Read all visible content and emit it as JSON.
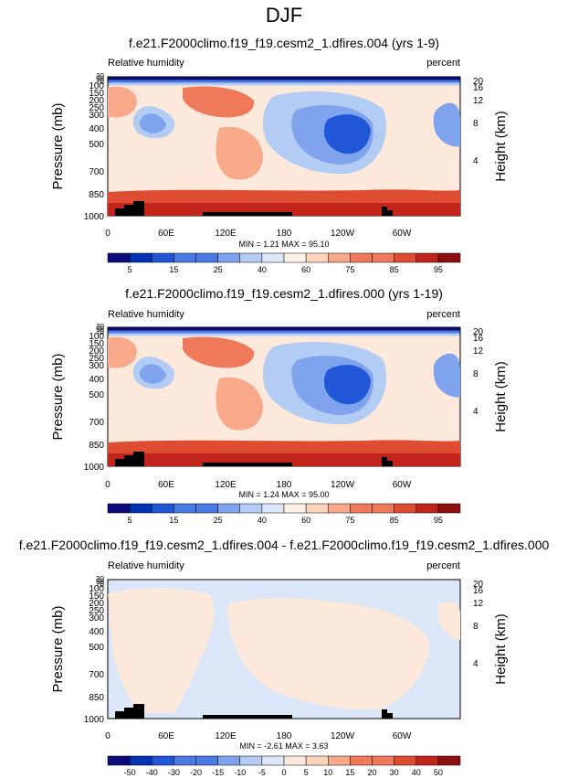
{
  "page": {
    "title": "DJF"
  },
  "colors": {
    "abs_fill": [
      "#0b0b7a",
      "#0033b3",
      "#1f57d6",
      "#4a7ae3",
      "#7fa3ec",
      "#b3ccf3",
      "#dbe6f8",
      "#fff2e8",
      "#fcd4bc",
      "#f7a98a",
      "#ee7a5b",
      "#de4d31",
      "#c1241a",
      "#8e0f10"
    ],
    "diff_fill": [
      "#0b0b7a",
      "#0033b3",
      "#1f57d6",
      "#4a7ae3",
      "#7fa3ec",
      "#b3ccf3",
      "#dbe6f8",
      "#fde9db",
      "#fcd4bc",
      "#f7a98a",
      "#ee7a5b",
      "#de4d31",
      "#c1241a",
      "#8e0f10"
    ],
    "topography": "#000000"
  },
  "chart_data": [
    {
      "type": "heatmap",
      "title": "f.e21.F2000climo.f19_f19.cesm2_1.dfires.004 (yrs 1-9)",
      "variable_label": "Relative humidity",
      "units_label": "percent",
      "ylabel": "Pressure (mb)",
      "ylabel_right": "Height (km)",
      "x_ticks": [
        "0",
        "60E",
        "120E",
        "180",
        "120W",
        "60W"
      ],
      "y_ticks": [
        "1000",
        "850",
        "700",
        "500",
        "400",
        "300",
        "250",
        "200",
        "150",
        "100",
        "70",
        "50",
        "30"
      ],
      "y_ticks_right": [
        "4",
        "8",
        "12",
        "16",
        "20"
      ],
      "min_max_label": "MIN =   1.21  MAX =  95.10",
      "colorbar_levels": [
        "",
        "5",
        "",
        "15",
        "",
        "25",
        "",
        "40",
        "",
        "60",
        "",
        "75",
        "",
        "85",
        "",
        "95"
      ],
      "colorbar_ticks": [
        "5",
        "15",
        "25",
        "40",
        "60",
        "75",
        "85",
        "95"
      ],
      "levels": [
        5,
        10,
        15,
        20,
        25,
        30,
        40,
        50,
        60,
        70,
        75,
        80,
        85,
        90,
        95
      ],
      "grid": false
    },
    {
      "type": "heatmap",
      "title": "f.e21.F2000climo.f19_f19.cesm2_1.dfires.000 (yrs 1-19)",
      "variable_label": "Relative humidity",
      "units_label": "percent",
      "ylabel": "Pressure (mb)",
      "ylabel_right": "Height (km)",
      "x_ticks": [
        "0",
        "60E",
        "120E",
        "180",
        "120W",
        "60W"
      ],
      "y_ticks": [
        "1000",
        "850",
        "700",
        "500",
        "400",
        "300",
        "250",
        "200",
        "150",
        "100",
        "70",
        "50",
        "30"
      ],
      "y_ticks_right": [
        "4",
        "8",
        "12",
        "16",
        "20"
      ],
      "min_max_label": "MIN =   1.24  MAX =  95.00",
      "colorbar_ticks": [
        "5",
        "15",
        "25",
        "40",
        "60",
        "75",
        "85",
        "95"
      ],
      "levels": [
        5,
        10,
        15,
        20,
        25,
        30,
        40,
        50,
        60,
        70,
        75,
        80,
        85,
        90,
        95
      ],
      "grid": false
    },
    {
      "type": "heatmap",
      "title": "f.e21.F2000climo.f19_f19.cesm2_1.dfires.004 - f.e21.F2000climo.f19_f19.cesm2_1.dfires.000",
      "variable_label": "Relative humidity",
      "units_label": "percent",
      "ylabel": "Pressure (mb)",
      "ylabel_right": "Height (km)",
      "x_ticks": [
        "0",
        "60E",
        "120E",
        "180",
        "120W",
        "60W"
      ],
      "y_ticks": [
        "1000",
        "850",
        "700",
        "500",
        "400",
        "300",
        "250",
        "200",
        "150",
        "100",
        "70",
        "50",
        "30"
      ],
      "y_ticks_right": [
        "4",
        "8",
        "12",
        "16",
        "20"
      ],
      "min_max_label": "MIN =  -2.61  MAX =   3.63",
      "colorbar_ticks": [
        "-50",
        "-40",
        "-30",
        "-20",
        "-15",
        "-10",
        "-5",
        "0",
        "5",
        "10",
        "15",
        "20",
        "30",
        "40",
        "50"
      ],
      "levels": [
        -50,
        -40,
        -30,
        -20,
        -15,
        -10,
        -5,
        0,
        5,
        10,
        15,
        20,
        30,
        40,
        50
      ],
      "grid": false
    }
  ]
}
